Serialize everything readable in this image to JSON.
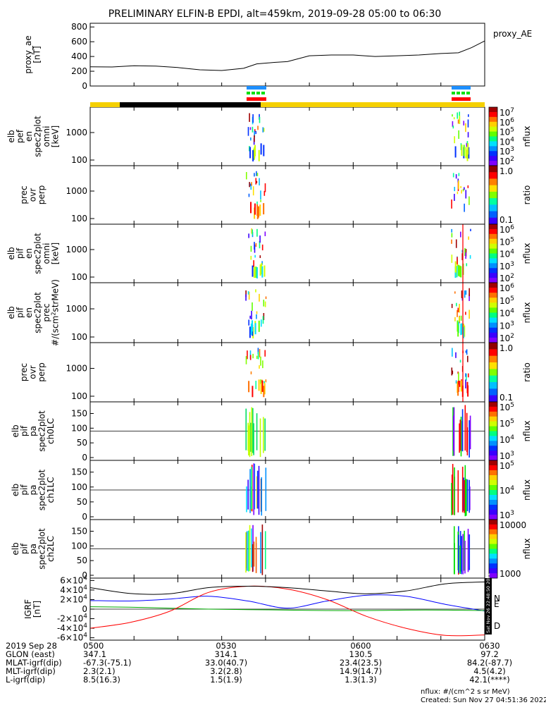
{
  "title": "PRELIMINARY ELFIN-B EPDI, alt=459km, 2019-09-28 05:00 to 06:30",
  "chart_data": [
    {
      "type": "line",
      "id": "proxy_ae",
      "ylabel_lines": [
        "proxy_ae",
        "[nT]"
      ],
      "yticks": [
        "0",
        "200",
        "400",
        "600",
        "800"
      ],
      "ylim": [
        0,
        850
      ],
      "legend": "proxy_AE",
      "x": [
        "05:00",
        "05:05",
        "05:10",
        "05:15",
        "05:20",
        "05:25",
        "05:30",
        "05:35",
        "05:38",
        "05:42",
        "05:45",
        "05:50",
        "05:55",
        "06:00",
        "06:05",
        "06:10",
        "06:15",
        "06:20",
        "06:24",
        "06:27",
        "06:30"
      ],
      "values": [
        260,
        258,
        275,
        270,
        250,
        220,
        210,
        240,
        300,
        320,
        330,
        410,
        420,
        420,
        400,
        410,
        420,
        440,
        450,
        520,
        610
      ]
    },
    {
      "type": "heatmap",
      "id": "pef_omni",
      "ylabel_lines": [
        "elb",
        "pef",
        "en",
        "spec2plot",
        "omni",
        "[keV]"
      ],
      "yticks": [
        "100",
        "1000"
      ],
      "colorbar": {
        "ticks": [
          "10^7",
          "10^6",
          "10^5",
          "10^4",
          "10^3",
          "10^2"
        ],
        "label": "nflux"
      }
    },
    {
      "type": "heatmap",
      "id": "pef_ratio",
      "ylabel_lines": [
        "prec",
        "ovr",
        "perp"
      ],
      "yticks": [
        "100",
        "1000"
      ],
      "colorbar": {
        "ticks": [
          "1.0",
          "0.1"
        ],
        "label": "ratio"
      }
    },
    {
      "type": "heatmap",
      "id": "pif_omni",
      "ylabel_lines": [
        "elb",
        "pif",
        "en",
        "spec2plot",
        "omni",
        "[keV]"
      ],
      "yticks": [
        "100",
        "1000"
      ],
      "colorbar": {
        "ticks": [
          "10^6",
          "10^5",
          "10^4",
          "10^3",
          "10^2"
        ],
        "label": "nflux"
      }
    },
    {
      "type": "heatmap",
      "id": "pif_prec",
      "ylabel_lines": [
        "elb",
        "pif",
        "en",
        "spec2plot",
        "prec",
        "#/(scm^2strMeV)"
      ],
      "yticks": [
        "100",
        "1000"
      ],
      "colorbar": {
        "ticks": [
          "10^6",
          "10^5",
          "10^4",
          "10^3",
          "10^2"
        ],
        "label": "nflux"
      }
    },
    {
      "type": "heatmap",
      "id": "pif_ratio",
      "ylabel_lines": [
        "prec",
        "ovr",
        "perp"
      ],
      "yticks": [
        "100",
        "1000"
      ],
      "colorbar": {
        "ticks": [
          "1.0",
          "0.1"
        ],
        "label": "ratio"
      }
    },
    {
      "type": "heatmap",
      "id": "pa_ch0",
      "ylabel_lines": [
        "elb",
        "pif",
        "pa",
        "spec2plot",
        "ch0LC"
      ],
      "yticks": [
        "0",
        "50",
        "100",
        "150"
      ],
      "colorbar": {
        "ticks": [
          "10^5",
          "10^5",
          "10^4",
          "10^3"
        ],
        "label": "nflux"
      }
    },
    {
      "type": "heatmap",
      "id": "pa_ch1",
      "ylabel_lines": [
        "elb",
        "pif",
        "pa",
        "spec2plot",
        "ch1LC"
      ],
      "yticks": [
        "0",
        "50",
        "100",
        "150"
      ],
      "colorbar": {
        "ticks": [
          "10^5",
          "10^4",
          "10^3"
        ],
        "label": "nflux"
      }
    },
    {
      "type": "heatmap",
      "id": "pa_ch2",
      "ylabel_lines": [
        "elb",
        "pif",
        "pa",
        "spec2plot",
        "ch2LC"
      ],
      "yticks": [
        "0",
        "50",
        "100",
        "150"
      ],
      "colorbar": {
        "ticks": [
          "10000",
          "1000"
        ],
        "label": "nflux"
      }
    },
    {
      "type": "line",
      "id": "igrf",
      "ylabel_lines": [
        "IGRF",
        "[nT]"
      ],
      "yticks": [
        "-6×10^4",
        "-4×10^4",
        "-2×10^4",
        "0",
        "2×10^4",
        "4×10^4",
        "6×10^4"
      ],
      "ylim": [
        -65000,
        65000
      ],
      "x": [
        "05:00",
        "05:09",
        "05:18",
        "05:27",
        "05:36",
        "05:45",
        "05:54",
        "06:03",
        "06:12",
        "06:21",
        "06:30"
      ],
      "series": [
        {
          "name": "N",
          "color": "#0000ff",
          "values": [
            18000,
            17000,
            21000,
            27000,
            17000,
            2000,
            17000,
            29000,
            27000,
            10000,
            -4000
          ]
        },
        {
          "name": "E",
          "color": "#00aa00",
          "values": [
            5000,
            4000,
            2000,
            0,
            -1000,
            -2000,
            -3000,
            -3000,
            -2000,
            -2000,
            -3000
          ]
        },
        {
          "name": "D",
          "color": "#ff0000",
          "values": [
            -40000,
            -28000,
            -5000,
            35000,
            48000,
            42000,
            20000,
            -15000,
            -40000,
            -55000,
            -54000
          ]
        },
        {
          "name": "",
          "color": "#000000",
          "values": [
            45000,
            33000,
            32000,
            45000,
            48000,
            45000,
            38000,
            32000,
            38000,
            53000,
            57000
          ]
        }
      ],
      "side_label": "Sat Nov 26 22:48:50 2022"
    }
  ],
  "xaxis": {
    "ticks": [
      "0500",
      "0530",
      "0600",
      "0630"
    ]
  },
  "ephemeris": [
    {
      "label": "2019 Sep 28",
      "values": [
        "0500",
        "0530",
        "0600",
        "0630"
      ]
    },
    {
      "label": "GLON (east)",
      "values": [
        "347.1",
        "314.1",
        "130.5",
        "97.2"
      ]
    },
    {
      "label": "MLAT-igrf(dip)",
      "values": [
        "-67.3(-75.1)",
        "33.0(40.7)",
        "23.4(23.5)",
        "84.2(-87.7)"
      ]
    },
    {
      "label": "MLT-igrf(dip)",
      "values": [
        "2.3(2.1)",
        "3.2(2.8)",
        "14.9(14.7)",
        "4.5(4.2)"
      ]
    },
    {
      "label": "L-igrf(dip)",
      "values": [
        "8.5(16.3)",
        "1.5(1.9)",
        "1.3(1.3)",
        "42.1(****)"
      ]
    }
  ],
  "footnote": {
    "units": "nflux: #/(cm^2 s sr MeV)",
    "created": "Created: Sun Nov 27 04:51:36 2022"
  },
  "colors": {
    "orbit_bar": "#f5d000",
    "orbit_dark": "#000000"
  }
}
